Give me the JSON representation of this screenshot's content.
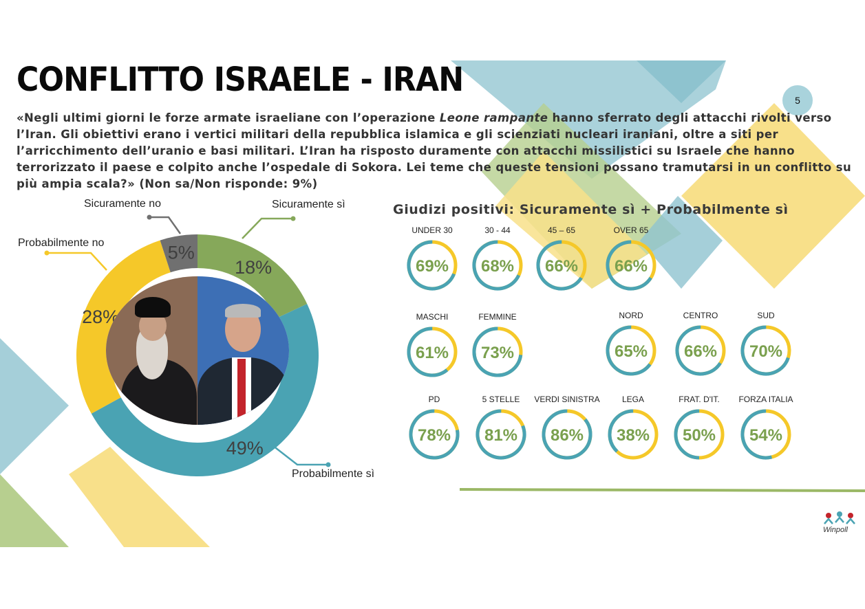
{
  "header": {
    "title": "CONFLITTO ISRAELE - IRAN",
    "page_number": "5"
  },
  "question": {
    "part1": "«Negli ultimi giorni le forze armate israeliane con l’operazione ",
    "italic": "Leone rampante",
    "part2": " hanno sferrato degli attacchi rivolti verso l’Iran. Gli obiettivi erano i vertici militari della repubblica islamica e gli scienziati nucleari iraniani, oltre a siti per l’arricchimento dell’uranio e basi militari. L’Iran ha risposto duramente con attacchi missilistici su Israele che hanno terrorizzato il paese e colpito anche l’ospedale di Sokora. Lei teme che queste tensioni possano tramutarsi in un conflitto su più ampia scala?» (Non sa/Non risponde: 9%)"
  },
  "subtitle": "Giudizi positivi: Sicuramente sì + Probabilmente sì",
  "colors": {
    "green": "#86a85a",
    "teal": "#4aa3b3",
    "yellow": "#f5c829",
    "gray": "#707070",
    "gauge_text": "#7aa04e",
    "light_teal": "#8ec3cf",
    "light_yellow": "#f8e08a",
    "light_green": "#b7cf8f"
  },
  "chart_data": [
    {
      "type": "pie",
      "variant": "donut",
      "categories": [
        "Sicuramente sì",
        "Probabilmente sì",
        "Probabilmente no",
        "Sicuramente no"
      ],
      "values": [
        18,
        49,
        28,
        5
      ],
      "value_labels": [
        "18%",
        "49%",
        "28%",
        "5%"
      ],
      "colors": [
        "#86a85a",
        "#4aa3b3",
        "#f5c829",
        "#707070"
      ]
    },
    {
      "type": "pie",
      "variant": "gauge-rings",
      "title": "Giudizi positivi: Sicuramente sì + Probabilmente sì",
      "categories": [
        "UNDER 30",
        "30 - 44",
        "45 – 65",
        "OVER 65",
        "MASCHI",
        "FEMMINE",
        "NORD",
        "CENTRO",
        "SUD",
        "PD",
        "5 STELLE",
        "VERDI SINISTRA",
        "LEGA",
        "FRAT. D'IT.",
        "FORZA ITALIA"
      ],
      "values": [
        69,
        68,
        66,
        66,
        61,
        73,
        65,
        66,
        70,
        78,
        81,
        86,
        38,
        50,
        54
      ],
      "value_labels": [
        "69%",
        "68%",
        "66%",
        "66%",
        "61%",
        "73%",
        "65%",
        "66%",
        "70%",
        "78%",
        "81%",
        "86%",
        "38%",
        "50%",
        "54%"
      ]
    }
  ],
  "donut_callouts": {
    "sicuramente_si": "Sicuramente sì",
    "probabilmente_si": "Probabilmente sì",
    "probabilmente_no": "Probabilmente no",
    "sicuramente_no": "Sicuramente no"
  },
  "logo": {
    "text": "Winpoll"
  }
}
